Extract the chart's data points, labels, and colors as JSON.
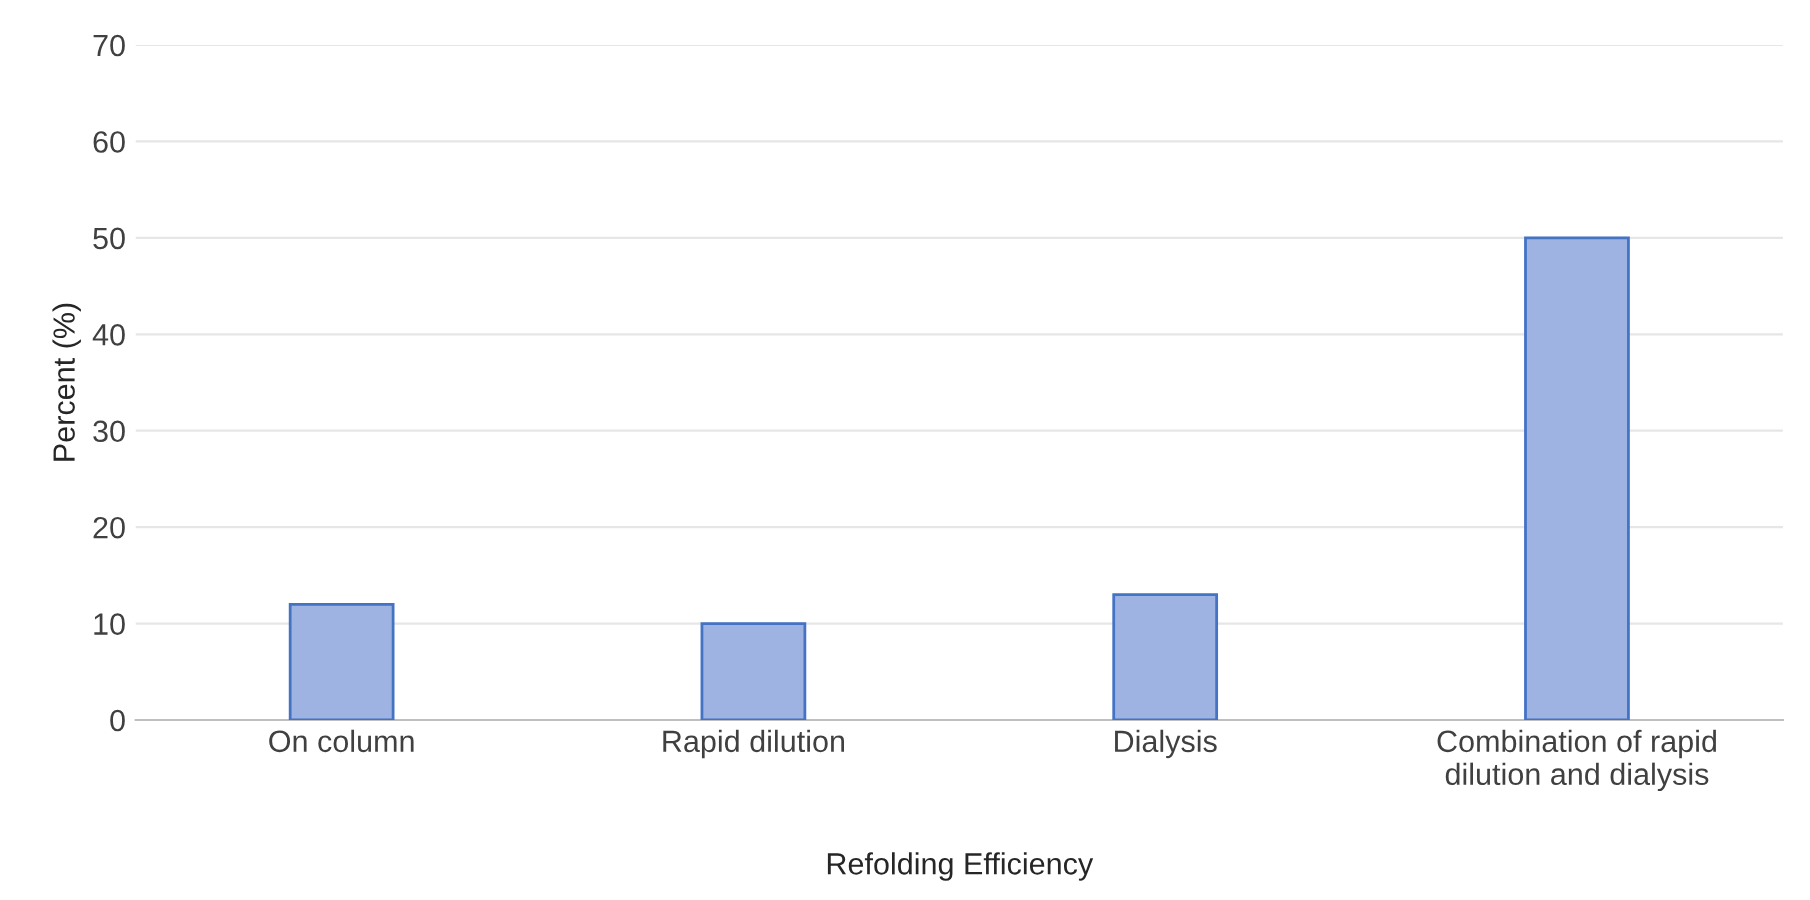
{
  "chart_data": {
    "type": "bar",
    "xlabel": "Refolding Efficiency",
    "ylabel": "Percent (%)",
    "categories": [
      "On column",
      "Rapid dilution",
      "Dialysis",
      "Combination of rapid\ndilution and dialysis"
    ],
    "values": [
      12,
      10,
      13,
      50
    ],
    "color": "#9fb3e3",
    "ylim": [
      0,
      70
    ],
    "yticks": [
      0,
      10,
      20,
      30,
      40,
      50,
      60,
      70
    ],
    "grid": "y"
  }
}
